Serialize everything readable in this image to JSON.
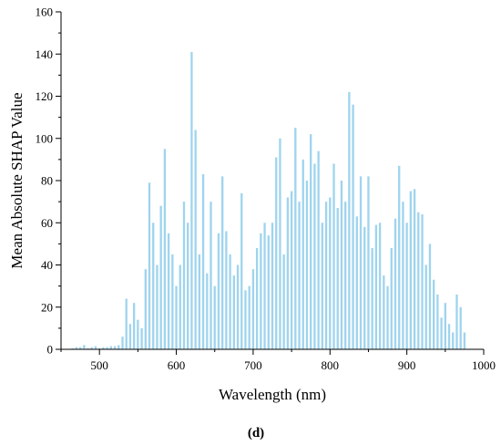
{
  "panel_label": "(d)",
  "chart_data": {
    "type": "bar",
    "title": "",
    "xlabel": "Wavelength (nm)",
    "ylabel": "Mean Absolute SHAP Value",
    "xlim": [
      450,
      1000
    ],
    "ylim": [
      0,
      160
    ],
    "x_ticks": [
      500,
      600,
      700,
      800,
      900,
      1000
    ],
    "y_ticks": [
      0,
      20,
      40,
      60,
      80,
      100,
      120,
      140,
      160
    ],
    "bar_color": "#9fd4ee",
    "grid": false,
    "legend": "none",
    "x": [
      455,
      460,
      465,
      470,
      475,
      480,
      485,
      490,
      495,
      500,
      505,
      510,
      515,
      520,
      525,
      530,
      535,
      540,
      545,
      550,
      555,
      560,
      565,
      570,
      575,
      580,
      585,
      590,
      595,
      600,
      605,
      610,
      615,
      620,
      625,
      630,
      635,
      640,
      645,
      650,
      655,
      660,
      665,
      670,
      675,
      680,
      685,
      690,
      695,
      700,
      705,
      710,
      715,
      720,
      725,
      730,
      735,
      740,
      745,
      750,
      755,
      760,
      765,
      770,
      775,
      780,
      785,
      790,
      795,
      800,
      805,
      810,
      815,
      820,
      825,
      830,
      835,
      840,
      845,
      850,
      855,
      860,
      865,
      870,
      875,
      880,
      885,
      890,
      895,
      900,
      905,
      910,
      915,
      920,
      925,
      930,
      935,
      940,
      945,
      950,
      955,
      960,
      965,
      970,
      975
    ],
    "values": [
      0,
      0,
      0.5,
      1,
      1,
      2,
      0.5,
      1,
      1.5,
      0.5,
      1,
      1,
      1.5,
      1.5,
      2,
      6,
      24,
      12,
      22,
      14,
      10,
      38,
      79,
      60,
      40,
      68,
      95,
      55,
      45,
      30,
      40,
      70,
      60,
      141,
      104,
      45,
      83,
      36,
      70,
      30,
      55,
      82,
      56,
      45,
      35,
      40,
      74,
      28,
      30,
      38,
      48,
      55,
      60,
      54,
      60,
      91,
      100,
      45,
      72,
      75,
      105,
      70,
      90,
      80,
      102,
      88,
      94,
      60,
      70,
      72,
      88,
      67,
      80,
      70,
      122,
      116,
      63,
      82,
      58,
      82,
      48,
      59,
      60,
      35,
      30,
      48,
      62,
      87,
      70,
      60,
      75,
      76,
      65,
      64,
      40,
      50,
      33,
      26,
      15,
      22,
      12,
      8,
      26,
      20,
      8
    ]
  }
}
